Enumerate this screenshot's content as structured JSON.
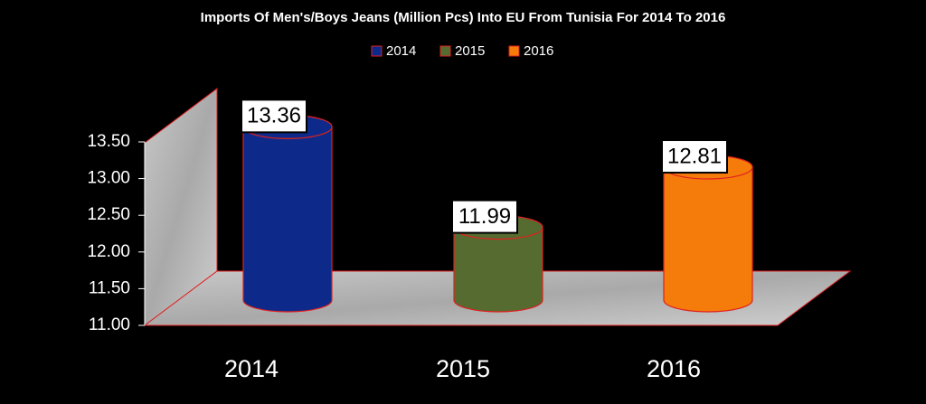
{
  "chart_data": {
    "type": "bar",
    "title": "Imports Of Men's/Boys Jeans (Million Pcs) Into EU From Tunisia For 2014 To 2016",
    "categories": [
      "2014",
      "2015",
      "2016"
    ],
    "series": [
      {
        "name": "2014",
        "color": "#0d2a8a",
        "values": [
          13.36,
          null,
          null
        ]
      },
      {
        "name": "2015",
        "color": "#556b2f",
        "values": [
          null,
          11.99,
          null
        ]
      },
      {
        "name": "2016",
        "color": "#f57c0a",
        "values": [
          null,
          null,
          12.81
        ]
      }
    ],
    "ylim": [
      11,
      13.5
    ],
    "yticks": [
      {
        "value": 11,
        "label": "11.00"
      },
      {
        "value": 11.5,
        "label": "11.50"
      },
      {
        "value": 12,
        "label": "12.00"
      },
      {
        "value": 12.5,
        "label": "12.50"
      },
      {
        "value": 13,
        "label": "13.00"
      },
      {
        "value": 13.5,
        "label": "13.50"
      }
    ],
    "legend": "top"
  }
}
